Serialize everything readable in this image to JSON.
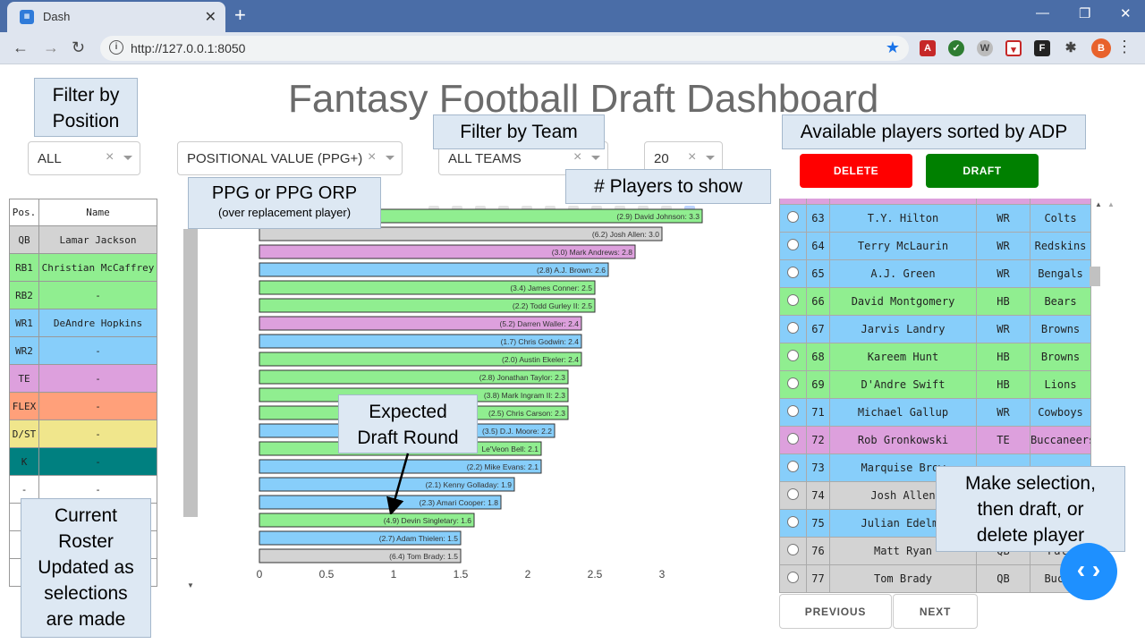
{
  "browser": {
    "tab_title": "Dash",
    "tab_favicon": "dash-favicon",
    "url": "http://127.0.0.1:8050",
    "new_tab": "+",
    "close": "✕",
    "minimize": "—",
    "restore": "❐",
    "window_close": "✕",
    "back": "←",
    "forward": "→",
    "reload": "↻"
  },
  "page": {
    "title": "Fantasy Football Draft Dashboard"
  },
  "callouts": {
    "filter_position": "Filter by\nPosition",
    "filter_team": "Filter by Team",
    "available_players": "Available players sorted by ADP",
    "ppg_title": "PPG or PPG ORP",
    "ppg_sub": "(over replacement player)",
    "num_players": "# Players to show",
    "expected_round": "Expected\nDraft Round",
    "current_roster": "Current\nRoster\nUpdated as\nselections\nare made",
    "make_selection": "Make selection,\nthen draft, or\ndelete player"
  },
  "dropdowns": {
    "position": "ALL",
    "metric": "POSITIONAL VALUE (PPG+)",
    "team": "ALL TEAMS",
    "count": "20"
  },
  "buttons": {
    "delete": "DELETE",
    "draft": "DRAFT",
    "previous": "PREVIOUS",
    "next": "NEXT",
    "fab": "‹ ›"
  },
  "colors": {
    "QB": "#d3d3d3",
    "RB": "#90ee90",
    "WR": "#87cefa",
    "TE": "#dda0dd",
    "FLEX": "#ffa07a",
    "DST": "#f0e68c",
    "K": "#008080",
    "delete": "#ff0000",
    "draft": "#008000"
  },
  "roster": {
    "headers": [
      "Pos.",
      "Name"
    ],
    "rows": [
      {
        "pos": "QB",
        "name": "Lamar Jackson",
        "color": "QB"
      },
      {
        "pos": "RB1",
        "name": "Christian McCaffrey",
        "color": "RB"
      },
      {
        "pos": "RB2",
        "name": "-",
        "color": "RB"
      },
      {
        "pos": "WR1",
        "name": "DeAndre Hopkins",
        "color": "WR"
      },
      {
        "pos": "WR2",
        "name": "-",
        "color": "WR"
      },
      {
        "pos": "TE",
        "name": "-",
        "color": "TE"
      },
      {
        "pos": "FLEX",
        "name": "-",
        "color": "FLEX"
      },
      {
        "pos": "D/ST",
        "name": "-",
        "color": "DST"
      },
      {
        "pos": "K",
        "name": "-",
        "color": "K"
      },
      {
        "pos": "-",
        "name": "-",
        "color": "none"
      }
    ]
  },
  "chart_data": {
    "type": "bar",
    "orientation": "horizontal",
    "xlim": [
      0,
      3.3
    ],
    "xticks": [
      0,
      0.5,
      1,
      1.5,
      2,
      2.5,
      3
    ],
    "xtick_labels": [
      "0",
      "0.5",
      "1",
      "1.5",
      "2",
      "2.5",
      "3"
    ],
    "bars": [
      {
        "label": "(2.9) David Johnson: 3.3",
        "value": 3.3,
        "pos": "RB"
      },
      {
        "label": "(6.2) Josh Allen: 3.0",
        "value": 3.0,
        "pos": "QB"
      },
      {
        "label": "(3.0) Mark Andrews: 2.8",
        "value": 2.8,
        "pos": "TE"
      },
      {
        "label": "(2.8) A.J. Brown: 2.6",
        "value": 2.6,
        "pos": "WR"
      },
      {
        "label": "(3.4) James Conner: 2.5",
        "value": 2.5,
        "pos": "RB"
      },
      {
        "label": "(2.2) Todd Gurley II: 2.5",
        "value": 2.5,
        "pos": "RB"
      },
      {
        "label": "(5.2) Darren Waller: 2.4",
        "value": 2.4,
        "pos": "TE"
      },
      {
        "label": "(1.7) Chris Godwin: 2.4",
        "value": 2.4,
        "pos": "WR"
      },
      {
        "label": "(2.0) Austin Ekeler: 2.4",
        "value": 2.4,
        "pos": "RB"
      },
      {
        "label": "(2.8) Jonathan Taylor: 2.3",
        "value": 2.3,
        "pos": "RB"
      },
      {
        "label": "(3.8) Mark Ingram II: 2.3",
        "value": 2.3,
        "pos": "RB"
      },
      {
        "label": "(2.5) Chris Carson: 2.3",
        "value": 2.3,
        "pos": "RB"
      },
      {
        "label": "(3.5) D.J. Moore: 2.2",
        "value": 2.2,
        "pos": "WR"
      },
      {
        "label": "Le'Veon Bell: 2.1",
        "value": 2.1,
        "pos": "RB"
      },
      {
        "label": "(2.2) Mike Evans: 2.1",
        "value": 2.1,
        "pos": "WR"
      },
      {
        "label": "(2.1) Kenny Golladay: 1.9",
        "value": 1.9,
        "pos": "WR"
      },
      {
        "label": "(2.3) Amari Cooper: 1.8",
        "value": 1.8,
        "pos": "WR"
      },
      {
        "label": "(4.9) Devin Singletary: 1.6",
        "value": 1.6,
        "pos": "RB"
      },
      {
        "label": "(2.7) Adam Thielen: 1.5",
        "value": 1.5,
        "pos": "WR"
      },
      {
        "label": "(6.4) Tom Brady: 1.5",
        "value": 1.5,
        "pos": "QB"
      }
    ]
  },
  "players": {
    "rows": [
      {
        "rank": "",
        "name": "",
        "pos": "",
        "team": "",
        "color": "TE",
        "partial": true
      },
      {
        "rank": "63",
        "name": "T.Y. Hilton",
        "pos": "WR",
        "team": "Colts",
        "color": "WR"
      },
      {
        "rank": "64",
        "name": "Terry McLaurin",
        "pos": "WR",
        "team": "Redskins",
        "color": "WR"
      },
      {
        "rank": "65",
        "name": "A.J. Green",
        "pos": "WR",
        "team": "Bengals",
        "color": "WR"
      },
      {
        "rank": "66",
        "name": "David Montgomery",
        "pos": "HB",
        "team": "Bears",
        "color": "RB"
      },
      {
        "rank": "67",
        "name": "Jarvis Landry",
        "pos": "WR",
        "team": "Browns",
        "color": "WR"
      },
      {
        "rank": "68",
        "name": "Kareem Hunt",
        "pos": "HB",
        "team": "Browns",
        "color": "RB"
      },
      {
        "rank": "69",
        "name": "D'Andre Swift",
        "pos": "HB",
        "team": "Lions",
        "color": "RB"
      },
      {
        "rank": "71",
        "name": "Michael Gallup",
        "pos": "WR",
        "team": "Cowboys",
        "color": "WR"
      },
      {
        "rank": "72",
        "name": "Rob Gronkowski",
        "pos": "TE",
        "team": "Buccaneers",
        "color": "TE"
      },
      {
        "rank": "73",
        "name": "Marquise Brow",
        "pos": "",
        "team": "",
        "color": "WR"
      },
      {
        "rank": "74",
        "name": "Josh Allen",
        "pos": "",
        "team": "",
        "color": "QB"
      },
      {
        "rank": "75",
        "name": "Julian Edelma",
        "pos": "",
        "team": "",
        "color": "WR"
      },
      {
        "rank": "76",
        "name": "Matt Ryan",
        "pos": "QB",
        "team": "Falc",
        "color": "QB"
      },
      {
        "rank": "77",
        "name": "Tom Brady",
        "pos": "QB",
        "team": "Bucca",
        "color": "QB"
      }
    ]
  }
}
